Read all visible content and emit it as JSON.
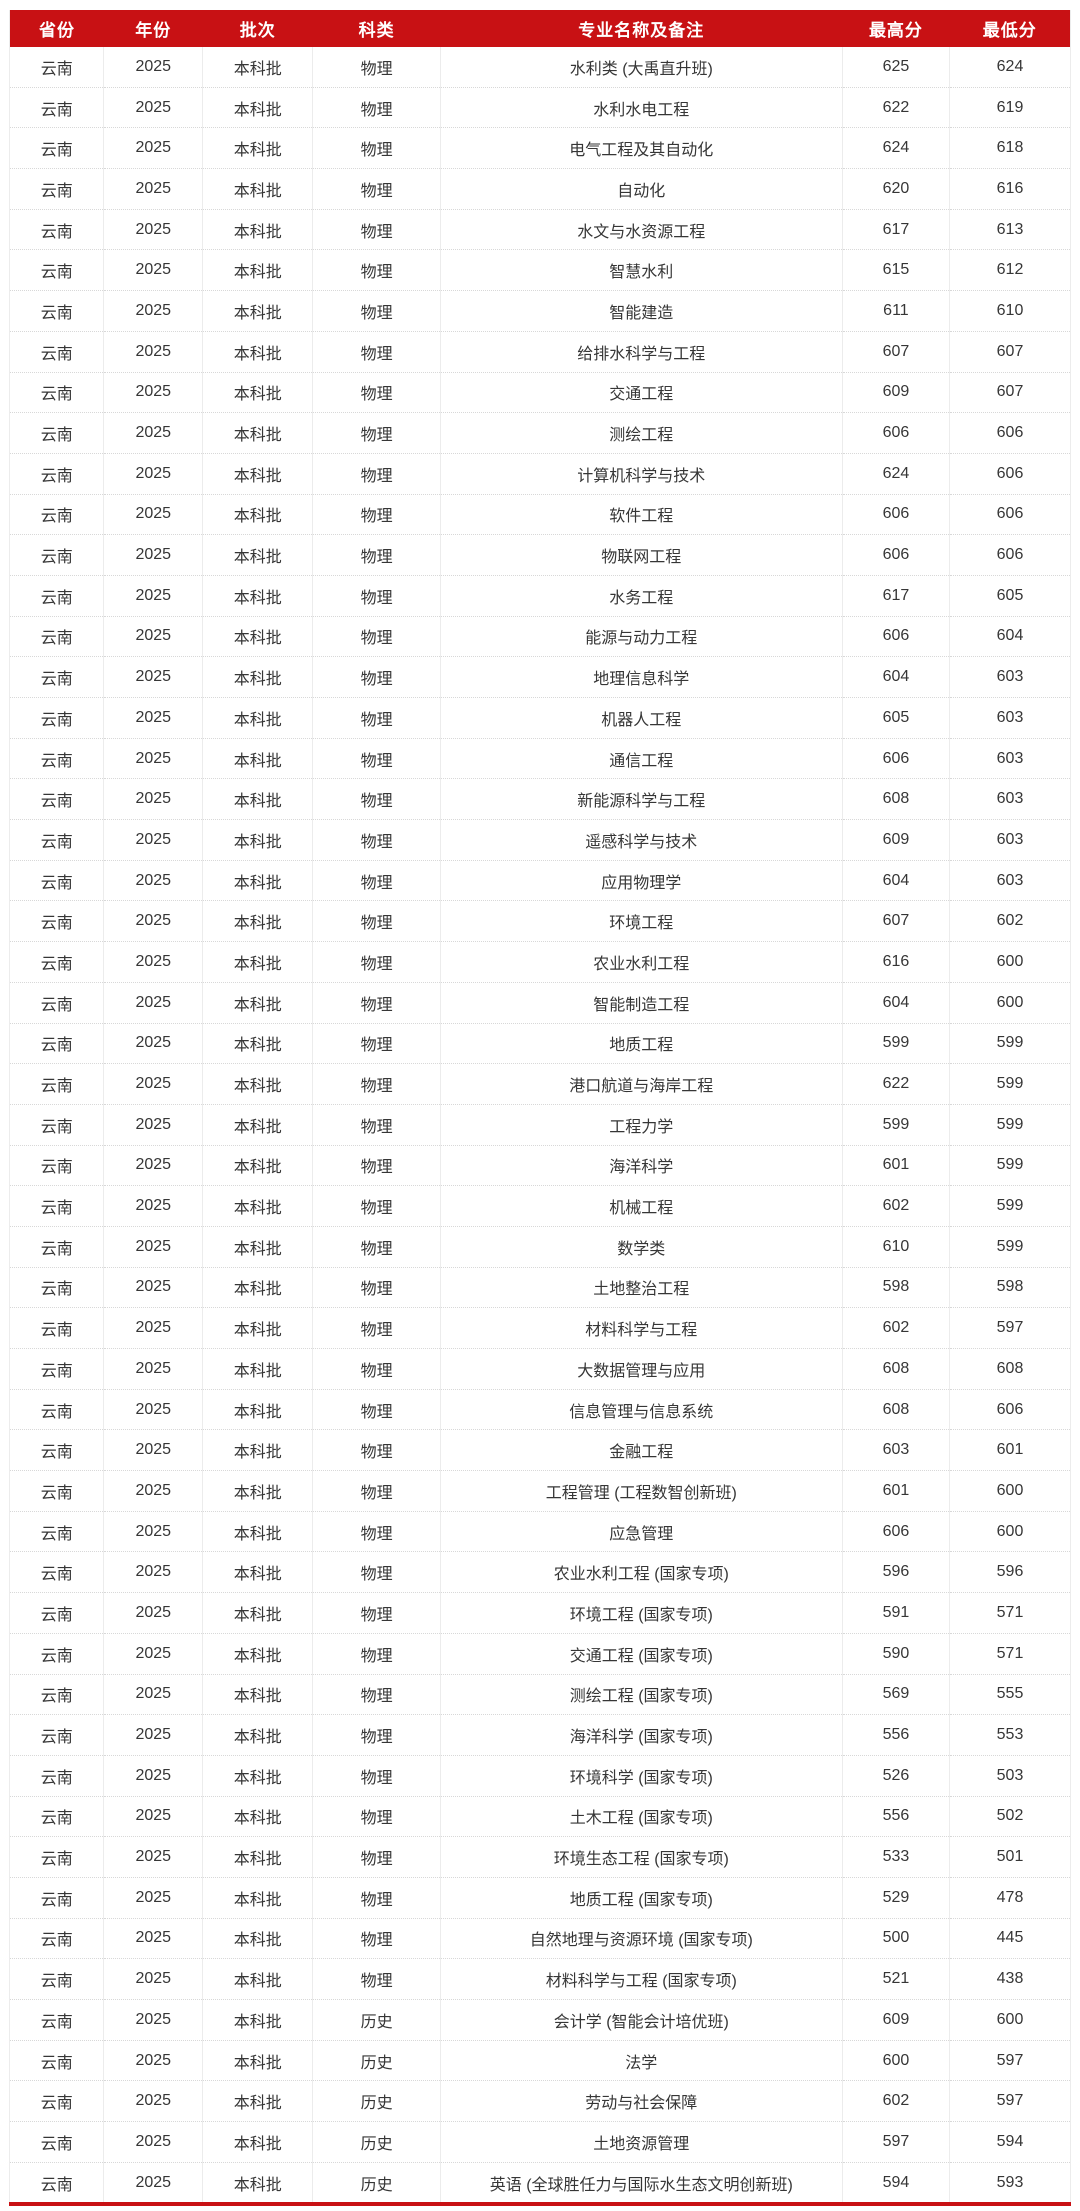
{
  "colors": {
    "header_bg": "#c81114",
    "header_text": "#ffffff",
    "body_text": "#363636",
    "bottom_line": "#c81114",
    "column_border": "#ececec",
    "row_separator": "#d8d8d8"
  },
  "chart_data": {
    "type": "table",
    "title": "",
    "columns": [
      "省份",
      "年份",
      "批次",
      "科类",
      "专业名称及备注",
      "最高分",
      "最低分"
    ],
    "column_keys": [
      "province",
      "year",
      "batch",
      "category",
      "major",
      "max_score",
      "min_score"
    ],
    "rows": [
      [
        "云南",
        "2025",
        "本科批",
        "物理",
        "水利类 (大禹直升班)",
        "625",
        "624"
      ],
      [
        "云南",
        "2025",
        "本科批",
        "物理",
        "水利水电工程",
        "622",
        "619"
      ],
      [
        "云南",
        "2025",
        "本科批",
        "物理",
        "电气工程及其自动化",
        "624",
        "618"
      ],
      [
        "云南",
        "2025",
        "本科批",
        "物理",
        "自动化",
        "620",
        "616"
      ],
      [
        "云南",
        "2025",
        "本科批",
        "物理",
        "水文与水资源工程",
        "617",
        "613"
      ],
      [
        "云南",
        "2025",
        "本科批",
        "物理",
        "智慧水利",
        "615",
        "612"
      ],
      [
        "云南",
        "2025",
        "本科批",
        "物理",
        "智能建造",
        "611",
        "610"
      ],
      [
        "云南",
        "2025",
        "本科批",
        "物理",
        "给排水科学与工程",
        "607",
        "607"
      ],
      [
        "云南",
        "2025",
        "本科批",
        "物理",
        "交通工程",
        "609",
        "607"
      ],
      [
        "云南",
        "2025",
        "本科批",
        "物理",
        "测绘工程",
        "606",
        "606"
      ],
      [
        "云南",
        "2025",
        "本科批",
        "物理",
        "计算机科学与技术",
        "624",
        "606"
      ],
      [
        "云南",
        "2025",
        "本科批",
        "物理",
        "软件工程",
        "606",
        "606"
      ],
      [
        "云南",
        "2025",
        "本科批",
        "物理",
        "物联网工程",
        "606",
        "606"
      ],
      [
        "云南",
        "2025",
        "本科批",
        "物理",
        "水务工程",
        "617",
        "605"
      ],
      [
        "云南",
        "2025",
        "本科批",
        "物理",
        "能源与动力工程",
        "606",
        "604"
      ],
      [
        "云南",
        "2025",
        "本科批",
        "物理",
        "地理信息科学",
        "604",
        "603"
      ],
      [
        "云南",
        "2025",
        "本科批",
        "物理",
        "机器人工程",
        "605",
        "603"
      ],
      [
        "云南",
        "2025",
        "本科批",
        "物理",
        "通信工程",
        "606",
        "603"
      ],
      [
        "云南",
        "2025",
        "本科批",
        "物理",
        "新能源科学与工程",
        "608",
        "603"
      ],
      [
        "云南",
        "2025",
        "本科批",
        "物理",
        "遥感科学与技术",
        "609",
        "603"
      ],
      [
        "云南",
        "2025",
        "本科批",
        "物理",
        "应用物理学",
        "604",
        "603"
      ],
      [
        "云南",
        "2025",
        "本科批",
        "物理",
        "环境工程",
        "607",
        "602"
      ],
      [
        "云南",
        "2025",
        "本科批",
        "物理",
        "农业水利工程",
        "616",
        "600"
      ],
      [
        "云南",
        "2025",
        "本科批",
        "物理",
        "智能制造工程",
        "604",
        "600"
      ],
      [
        "云南",
        "2025",
        "本科批",
        "物理",
        "地质工程",
        "599",
        "599"
      ],
      [
        "云南",
        "2025",
        "本科批",
        "物理",
        "港口航道与海岸工程",
        "622",
        "599"
      ],
      [
        "云南",
        "2025",
        "本科批",
        "物理",
        "工程力学",
        "599",
        "599"
      ],
      [
        "云南",
        "2025",
        "本科批",
        "物理",
        "海洋科学",
        "601",
        "599"
      ],
      [
        "云南",
        "2025",
        "本科批",
        "物理",
        "机械工程",
        "602",
        "599"
      ],
      [
        "云南",
        "2025",
        "本科批",
        "物理",
        "数学类",
        "610",
        "599"
      ],
      [
        "云南",
        "2025",
        "本科批",
        "物理",
        "土地整治工程",
        "598",
        "598"
      ],
      [
        "云南",
        "2025",
        "本科批",
        "物理",
        "材料科学与工程",
        "602",
        "597"
      ],
      [
        "云南",
        "2025",
        "本科批",
        "物理",
        "大数据管理与应用",
        "608",
        "608"
      ],
      [
        "云南",
        "2025",
        "本科批",
        "物理",
        "信息管理与信息系统",
        "608",
        "606"
      ],
      [
        "云南",
        "2025",
        "本科批",
        "物理",
        "金融工程",
        "603",
        "601"
      ],
      [
        "云南",
        "2025",
        "本科批",
        "物理",
        "工程管理 (工程数智创新班)",
        "601",
        "600"
      ],
      [
        "云南",
        "2025",
        "本科批",
        "物理",
        "应急管理",
        "606",
        "600"
      ],
      [
        "云南",
        "2025",
        "本科批",
        "物理",
        "农业水利工程 (国家专项)",
        "596",
        "596"
      ],
      [
        "云南",
        "2025",
        "本科批",
        "物理",
        "环境工程 (国家专项)",
        "591",
        "571"
      ],
      [
        "云南",
        "2025",
        "本科批",
        "物理",
        "交通工程 (国家专项)",
        "590",
        "571"
      ],
      [
        "云南",
        "2025",
        "本科批",
        "物理",
        "测绘工程 (国家专项)",
        "569",
        "555"
      ],
      [
        "云南",
        "2025",
        "本科批",
        "物理",
        "海洋科学 (国家专项)",
        "556",
        "553"
      ],
      [
        "云南",
        "2025",
        "本科批",
        "物理",
        "环境科学 (国家专项)",
        "526",
        "503"
      ],
      [
        "云南",
        "2025",
        "本科批",
        "物理",
        "土木工程 (国家专项)",
        "556",
        "502"
      ],
      [
        "云南",
        "2025",
        "本科批",
        "物理",
        "环境生态工程 (国家专项)",
        "533",
        "501"
      ],
      [
        "云南",
        "2025",
        "本科批",
        "物理",
        "地质工程 (国家专项)",
        "529",
        "478"
      ],
      [
        "云南",
        "2025",
        "本科批",
        "物理",
        "自然地理与资源环境 (国家专项)",
        "500",
        "445"
      ],
      [
        "云南",
        "2025",
        "本科批",
        "物理",
        "材料科学与工程 (国家专项)",
        "521",
        "438"
      ],
      [
        "云南",
        "2025",
        "本科批",
        "历史",
        "会计学 (智能会计培优班)",
        "609",
        "600"
      ],
      [
        "云南",
        "2025",
        "本科批",
        "历史",
        "法学",
        "600",
        "597"
      ],
      [
        "云南",
        "2025",
        "本科批",
        "历史",
        "劳动与社会保障",
        "602",
        "597"
      ],
      [
        "云南",
        "2025",
        "本科批",
        "历史",
        "土地资源管理",
        "597",
        "594"
      ],
      [
        "云南",
        "2025",
        "本科批",
        "历史",
        "英语 (全球胜任力与国际水生态文明创新班)",
        "594",
        "593"
      ]
    ]
  }
}
